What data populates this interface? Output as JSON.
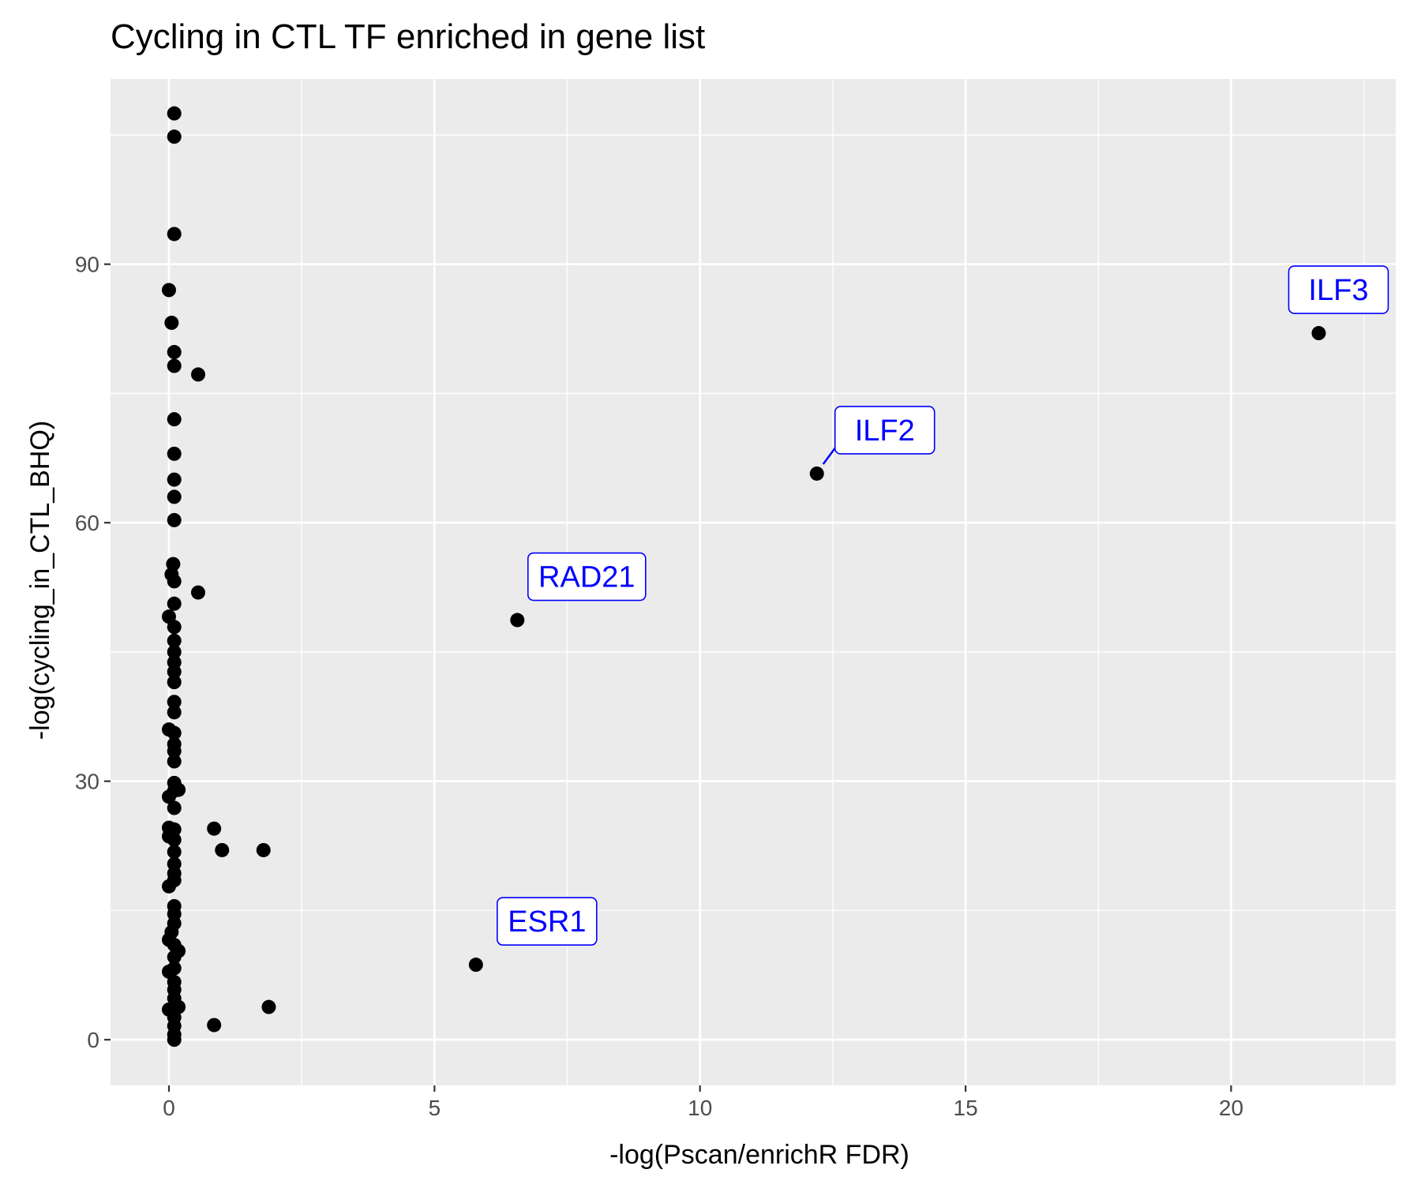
{
  "chart_data": {
    "type": "scatter",
    "title": "Cycling in CTL TF enriched in gene list",
    "xlabel": "-log(Pscan/enrichR FDR)",
    "ylabel": "-log(cycling_in_CTL_BHQ)",
    "xlim": [
      -1.1,
      23.1
    ],
    "ylim": [
      -5.3,
      111.5
    ],
    "x_ticks": [
      0,
      5,
      10,
      15,
      20
    ],
    "x_tick_labels": [
      "0",
      "5",
      "10",
      "15",
      "20"
    ],
    "y_ticks": [
      0,
      30,
      60,
      90
    ],
    "y_tick_labels": [
      "0",
      "30",
      "60",
      "90"
    ],
    "grid": true,
    "colors": {
      "panel_background": "#ebebeb",
      "grid": "#ffffff",
      "point": "#000000",
      "label": "#0000ff"
    },
    "points": [
      {
        "x": 0.1,
        "y": 107.5
      },
      {
        "x": 0.1,
        "y": 104.8
      },
      {
        "x": 0.1,
        "y": 93.5
      },
      {
        "x": 0.0,
        "y": 87.0
      },
      {
        "x": 0.05,
        "y": 83.2
      },
      {
        "x": 0.1,
        "y": 79.8
      },
      {
        "x": 0.1,
        "y": 78.2
      },
      {
        "x": 0.55,
        "y": 77.2
      },
      {
        "x": 0.1,
        "y": 72.0
      },
      {
        "x": 0.1,
        "y": 68.0
      },
      {
        "x": 0.1,
        "y": 65.0
      },
      {
        "x": 0.1,
        "y": 63.0
      },
      {
        "x": 0.1,
        "y": 60.3
      },
      {
        "x": 0.08,
        "y": 55.2
      },
      {
        "x": 0.05,
        "y": 54.0
      },
      {
        "x": 0.1,
        "y": 53.2
      },
      {
        "x": 0.55,
        "y": 51.9
      },
      {
        "x": 0.1,
        "y": 50.6
      },
      {
        "x": 0.0,
        "y": 49.1
      },
      {
        "x": 0.1,
        "y": 47.9
      },
      {
        "x": 0.1,
        "y": 46.3
      },
      {
        "x": 0.1,
        "y": 45.0
      },
      {
        "x": 0.1,
        "y": 43.8
      },
      {
        "x": 0.1,
        "y": 42.7
      },
      {
        "x": 0.1,
        "y": 41.5
      },
      {
        "x": 0.1,
        "y": 39.2
      },
      {
        "x": 0.1,
        "y": 38.0
      },
      {
        "x": 0.0,
        "y": 36.0
      },
      {
        "x": 0.1,
        "y": 35.6
      },
      {
        "x": 0.1,
        "y": 34.3
      },
      {
        "x": 0.1,
        "y": 33.5
      },
      {
        "x": 0.1,
        "y": 32.3
      },
      {
        "x": 0.1,
        "y": 29.8
      },
      {
        "x": 0.1,
        "y": 28.9
      },
      {
        "x": 0.0,
        "y": 28.2
      },
      {
        "x": 0.18,
        "y": 29.0
      },
      {
        "x": 0.1,
        "y": 26.9
      },
      {
        "x": 0.0,
        "y": 24.6
      },
      {
        "x": 0.1,
        "y": 24.4
      },
      {
        "x": 0.0,
        "y": 23.6
      },
      {
        "x": 0.1,
        "y": 23.2
      },
      {
        "x": 0.85,
        "y": 24.5
      },
      {
        "x": 1.0,
        "y": 22.0
      },
      {
        "x": 1.78,
        "y": 22.0
      },
      {
        "x": 0.1,
        "y": 21.8
      },
      {
        "x": 0.1,
        "y": 20.4
      },
      {
        "x": 0.1,
        "y": 19.3
      },
      {
        "x": 0.1,
        "y": 18.5
      },
      {
        "x": 0.0,
        "y": 17.8
      },
      {
        "x": 0.1,
        "y": 15.5
      },
      {
        "x": 0.1,
        "y": 14.6
      },
      {
        "x": 0.1,
        "y": 13.5
      },
      {
        "x": 0.05,
        "y": 12.5
      },
      {
        "x": 0.0,
        "y": 11.6
      },
      {
        "x": 0.1,
        "y": 11.0
      },
      {
        "x": 0.18,
        "y": 10.3
      },
      {
        "x": 0.1,
        "y": 9.6
      },
      {
        "x": 0.1,
        "y": 8.3
      },
      {
        "x": 0.0,
        "y": 7.9
      },
      {
        "x": 0.1,
        "y": 6.7
      },
      {
        "x": 0.1,
        "y": 5.8
      },
      {
        "x": 0.1,
        "y": 4.8
      },
      {
        "x": 0.0,
        "y": 3.5
      },
      {
        "x": 0.18,
        "y": 3.8
      },
      {
        "x": 0.1,
        "y": 2.6
      },
      {
        "x": 0.1,
        "y": 1.6
      },
      {
        "x": 0.1,
        "y": 0.6
      },
      {
        "x": 0.1,
        "y": 0.0
      },
      {
        "x": 0.85,
        "y": 1.7
      },
      {
        "x": 1.88,
        "y": 3.8
      },
      {
        "x": 5.78,
        "y": 8.7,
        "label": "ESR1"
      },
      {
        "x": 6.56,
        "y": 48.7,
        "label": "RAD21"
      },
      {
        "x": 12.2,
        "y": 65.7,
        "label": "ILF2"
      },
      {
        "x": 21.65,
        "y": 82.0,
        "label": "ILF3"
      }
    ]
  }
}
